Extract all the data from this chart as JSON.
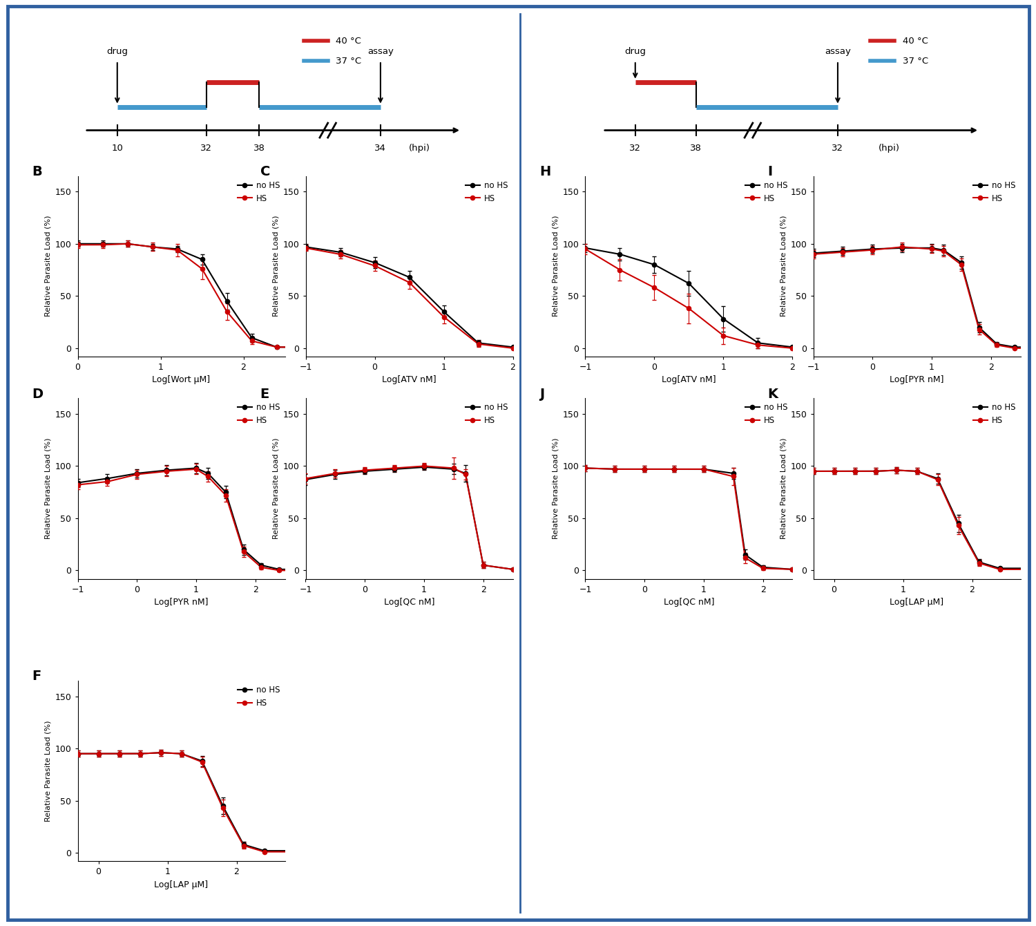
{
  "fig_bg": "#ffffff",
  "border_color": "#3060a0",
  "red_color": "#cc0000",
  "black_color": "#000000",
  "blue_hs_color": "#4499cc",
  "B": {
    "xlabel": "Log[Wort μM]",
    "xmin": 0,
    "xmax": 2.5,
    "x_ticks": [
      0,
      1,
      2
    ],
    "noHS_x": [
      0.0,
      0.3,
      0.6,
      0.9,
      1.2,
      1.5,
      1.8,
      2.1,
      2.4
    ],
    "noHS_y": [
      100,
      100,
      100,
      97,
      95,
      85,
      45,
      10,
      1
    ],
    "noHS_err": [
      3,
      3,
      3,
      3,
      3,
      5,
      8,
      4,
      1
    ],
    "HS_x": [
      0.0,
      0.3,
      0.6,
      0.9,
      1.2,
      1.5,
      1.8,
      2.1,
      2.4
    ],
    "HS_y": [
      99,
      99,
      100,
      97,
      94,
      76,
      35,
      7,
      1
    ],
    "HS_err": [
      3,
      3,
      3,
      4,
      6,
      10,
      8,
      3,
      1
    ],
    "noHS_ec50": 1.78,
    "noHS_hill": 4.0,
    "HS_ec50": 1.73,
    "HS_hill": 4.0
  },
  "C": {
    "xlabel": "Log[ATV nM]",
    "xmin": -1,
    "xmax": 2,
    "x_ticks": [
      -1,
      0,
      1,
      2
    ],
    "noHS_x": [
      -1.0,
      -0.5,
      0.0,
      0.5,
      1.0,
      1.5,
      2.0
    ],
    "noHS_y": [
      97,
      92,
      82,
      68,
      35,
      5,
      1
    ],
    "noHS_err": [
      3,
      4,
      5,
      6,
      6,
      3,
      1
    ],
    "HS_x": [
      -1.0,
      -0.5,
      0.0,
      0.5,
      1.0,
      1.5,
      2.0
    ],
    "HS_y": [
      96,
      90,
      79,
      63,
      30,
      4,
      0
    ],
    "HS_err": [
      3,
      4,
      5,
      6,
      6,
      3,
      1
    ],
    "noHS_ec50": 0.65,
    "noHS_hill": 1.3,
    "HS_ec50": 0.58,
    "HS_hill": 1.3
  },
  "D": {
    "xlabel": "Log[PYR nM]",
    "xmin": -1,
    "xmax": 2.5,
    "x_ticks": [
      -1,
      0,
      1,
      2
    ],
    "noHS_x": [
      -1.0,
      -0.5,
      0.0,
      0.5,
      1.0,
      1.2,
      1.5,
      1.8,
      2.1,
      2.4
    ],
    "noHS_y": [
      84,
      88,
      93,
      96,
      98,
      93,
      75,
      20,
      5,
      1
    ],
    "noHS_err": [
      4,
      4,
      4,
      5,
      5,
      5,
      6,
      5,
      2,
      1
    ],
    "HS_x": [
      -1.0,
      -0.5,
      0.0,
      0.5,
      1.0,
      1.2,
      1.5,
      1.8,
      2.1,
      2.4
    ],
    "HS_y": [
      82,
      85,
      92,
      95,
      97,
      90,
      72,
      18,
      3,
      0
    ],
    "HS_err": [
      4,
      4,
      4,
      5,
      5,
      5,
      6,
      5,
      2,
      1
    ],
    "noHS_ec50": 1.55,
    "noHS_hill": 4.5,
    "HS_ec50": 1.52,
    "HS_hill": 4.5
  },
  "E": {
    "xlabel": "Log[QC nM]",
    "xmin": -1,
    "xmax": 2.5,
    "x_ticks": [
      -1,
      0,
      1,
      2
    ],
    "noHS_x": [
      -1.0,
      -0.5,
      0.0,
      0.5,
      1.0,
      1.5,
      1.7,
      2.0,
      2.5
    ],
    "noHS_y": [
      87,
      92,
      95,
      97,
      99,
      97,
      93,
      5,
      1
    ],
    "noHS_err": [
      5,
      4,
      3,
      3,
      3,
      5,
      8,
      3,
      1
    ],
    "HS_x": [
      -1.0,
      -0.5,
      0.0,
      0.5,
      1.0,
      1.5,
      1.7,
      2.0,
      2.5
    ],
    "HS_y": [
      88,
      93,
      96,
      98,
      100,
      98,
      92,
      5,
      1
    ],
    "HS_err": [
      5,
      4,
      3,
      3,
      3,
      10,
      5,
      3,
      1
    ],
    "noHS_ec50": 1.72,
    "noHS_hill": 8.0,
    "HS_ec50": 1.7,
    "HS_hill": 8.0
  },
  "F": {
    "xlabel": "Log[LAP μM]",
    "xmin": -0.3,
    "xmax": 2.7,
    "x_ticks": [
      0,
      1,
      2
    ],
    "noHS_x": [
      -0.3,
      0.0,
      0.3,
      0.6,
      0.9,
      1.2,
      1.5,
      1.8,
      2.1,
      2.4
    ],
    "noHS_y": [
      95,
      95,
      95,
      95,
      96,
      95,
      88,
      45,
      8,
      2
    ],
    "noHS_err": [
      3,
      3,
      3,
      3,
      3,
      3,
      5,
      8,
      3,
      1
    ],
    "HS_x": [
      -0.3,
      0.0,
      0.3,
      0.6,
      0.9,
      1.2,
      1.5,
      1.8,
      2.1,
      2.4
    ],
    "HS_y": [
      95,
      95,
      95,
      95,
      96,
      95,
      87,
      43,
      7,
      1
    ],
    "HS_err": [
      3,
      3,
      3,
      3,
      3,
      3,
      5,
      8,
      3,
      1
    ],
    "noHS_ec50": 1.82,
    "noHS_hill": 3.5,
    "HS_ec50": 1.8,
    "HS_hill": 3.5
  },
  "H": {
    "xlabel": "Log[ATV nM]",
    "xmin": -1,
    "xmax": 2,
    "x_ticks": [
      -1,
      0,
      1,
      2
    ],
    "noHS_x": [
      -1.0,
      -0.5,
      0.0,
      0.5,
      1.0,
      1.5,
      2.0
    ],
    "noHS_y": [
      96,
      90,
      80,
      62,
      28,
      5,
      1
    ],
    "noHS_err": [
      4,
      6,
      8,
      12,
      12,
      5,
      1
    ],
    "HS_x": [
      -1.0,
      -0.5,
      0.0,
      0.5,
      1.0,
      1.5,
      2.0
    ],
    "HS_y": [
      95,
      75,
      58,
      38,
      12,
      3,
      0
    ],
    "HS_err": [
      5,
      10,
      12,
      14,
      8,
      3,
      1
    ],
    "noHS_ec50": 0.52,
    "noHS_hill": 1.3,
    "HS_ec50": 0.15,
    "HS_hill": 1.3
  },
  "I": {
    "xlabel": "Log[PYR nM]",
    "xmin": -1,
    "xmax": 2.5,
    "x_ticks": [
      -1,
      0,
      1,
      2
    ],
    "noHS_x": [
      -1.0,
      -0.5,
      0.0,
      0.5,
      1.0,
      1.2,
      1.5,
      1.8,
      2.1,
      2.4
    ],
    "noHS_y": [
      91,
      93,
      95,
      96,
      96,
      94,
      82,
      20,
      4,
      1
    ],
    "noHS_err": [
      4,
      4,
      4,
      4,
      4,
      5,
      6,
      5,
      2,
      1
    ],
    "HS_x": [
      -1.0,
      -0.5,
      0.0,
      0.5,
      1.0,
      1.2,
      1.5,
      1.8,
      2.1,
      2.4
    ],
    "HS_y": [
      90,
      92,
      94,
      97,
      95,
      93,
      80,
      18,
      3,
      0
    ],
    "HS_err": [
      4,
      4,
      4,
      4,
      4,
      5,
      6,
      5,
      2,
      1
    ],
    "noHS_ec50": 1.55,
    "noHS_hill": 4.2,
    "HS_ec50": 1.52,
    "HS_hill": 4.2
  },
  "J": {
    "xlabel": "Log[QC nM]",
    "xmin": -1,
    "xmax": 2.5,
    "x_ticks": [
      -1,
      0,
      1,
      2
    ],
    "noHS_x": [
      -1.0,
      -0.5,
      0.0,
      0.5,
      1.0,
      1.5,
      1.7,
      2.0,
      2.5
    ],
    "noHS_y": [
      98,
      97,
      97,
      97,
      97,
      93,
      15,
      3,
      1
    ],
    "noHS_err": [
      3,
      3,
      3,
      3,
      3,
      5,
      5,
      2,
      1
    ],
    "HS_x": [
      -1.0,
      -0.5,
      0.0,
      0.5,
      1.0,
      1.5,
      1.7,
      2.0,
      2.5
    ],
    "HS_y": [
      98,
      97,
      97,
      97,
      97,
      90,
      12,
      2,
      1
    ],
    "HS_err": [
      3,
      3,
      3,
      3,
      3,
      8,
      5,
      2,
      1
    ],
    "noHS_ec50": 1.68,
    "noHS_hill": 8.0,
    "HS_ec50": 1.66,
    "HS_hill": 8.0
  },
  "K": {
    "xlabel": "Log[LAP μM]",
    "xmin": -0.3,
    "xmax": 2.7,
    "x_ticks": [
      0,
      1,
      2
    ],
    "noHS_x": [
      -0.3,
      0.0,
      0.3,
      0.6,
      0.9,
      1.2,
      1.5,
      1.8,
      2.1,
      2.4
    ],
    "noHS_y": [
      95,
      95,
      95,
      95,
      96,
      95,
      88,
      45,
      8,
      2
    ],
    "noHS_err": [
      3,
      3,
      3,
      3,
      3,
      3,
      5,
      8,
      3,
      1
    ],
    "HS_x": [
      -0.3,
      0.0,
      0.3,
      0.6,
      0.9,
      1.2,
      1.5,
      1.8,
      2.1,
      2.4
    ],
    "HS_y": [
      95,
      95,
      95,
      95,
      96,
      95,
      87,
      43,
      7,
      1
    ],
    "HS_err": [
      3,
      3,
      3,
      3,
      3,
      3,
      5,
      8,
      3,
      1
    ],
    "noHS_ec50": 1.82,
    "noHS_hill": 3.5,
    "HS_ec50": 1.8,
    "HS_hill": 3.5
  }
}
